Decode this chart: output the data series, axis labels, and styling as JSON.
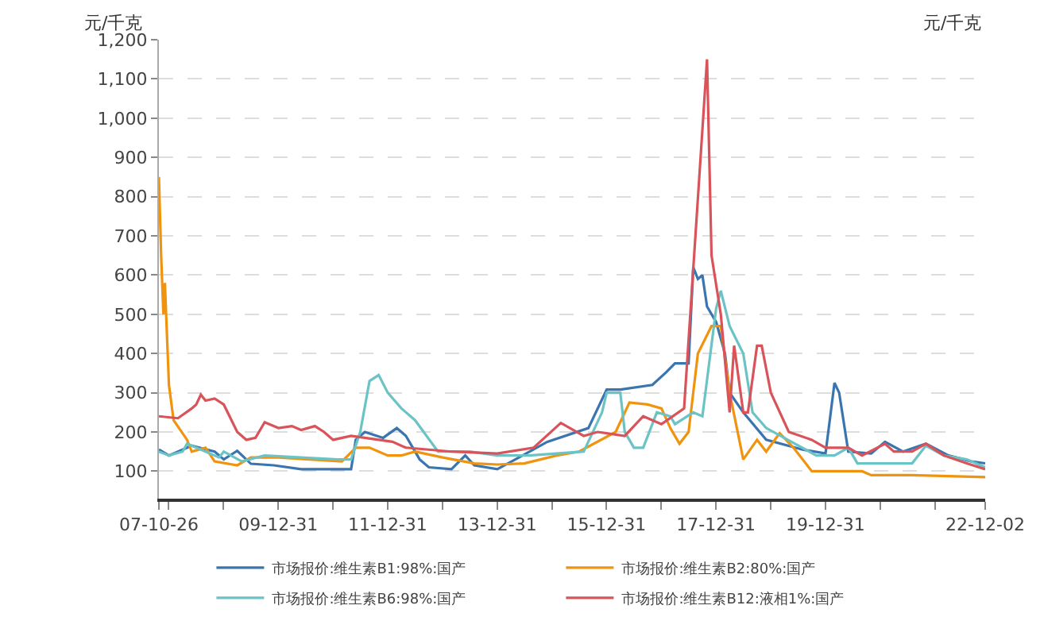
{
  "chart_data": {
    "type": "line",
    "ylabel": "元/千克",
    "y2label": "元/千克",
    "xlim": [
      "2007-10-26",
      "2022-12-02"
    ],
    "xticks": [
      {
        "value": "2007-10-26",
        "label": "07-10-26"
      },
      {
        "value": "2007-12-31",
        "label": null
      },
      {
        "value": "2008-12-31",
        "label": null
      },
      {
        "value": "2009-12-31",
        "label": "09-12-31"
      },
      {
        "value": "2010-12-31",
        "label": null
      },
      {
        "value": "2011-12-31",
        "label": "11-12-31"
      },
      {
        "value": "2012-12-31",
        "label": null
      },
      {
        "value": "2013-12-31",
        "label": "13-12-31"
      },
      {
        "value": "2014-12-31",
        "label": null
      },
      {
        "value": "2015-12-31",
        "label": "15-12-31"
      },
      {
        "value": "2016-12-31",
        "label": null
      },
      {
        "value": "2017-12-31",
        "label": "17-12-31"
      },
      {
        "value": "2018-12-31",
        "label": null
      },
      {
        "value": "2019-12-31",
        "label": "19-12-31"
      },
      {
        "value": "2020-12-31",
        "label": null
      },
      {
        "value": "2021-12-31",
        "label": null
      },
      {
        "value": "2022-12-02",
        "label": "22-12-02"
      }
    ],
    "ylim": [
      30,
      1200
    ],
    "yticks": [
      {
        "value": 100,
        "label": "100"
      },
      {
        "value": 200,
        "label": "200"
      },
      {
        "value": 300,
        "label": "300"
      },
      {
        "value": 400,
        "label": "400"
      },
      {
        "value": 500,
        "label": "500"
      },
      {
        "value": 600,
        "label": "600"
      },
      {
        "value": 700,
        "label": "700"
      },
      {
        "value": 800,
        "label": "800"
      },
      {
        "value": 900,
        "label": "900"
      },
      {
        "value": 1000,
        "label": "1,000"
      },
      {
        "value": 1100,
        "label": "1,100"
      },
      {
        "value": 1200,
        "label": "1,200"
      }
    ],
    "grid": "y",
    "legend": "bottom",
    "marker": "none",
    "line_style": "solid",
    "series": [
      {
        "name": "市场报价:维生素B1:98%:国产",
        "color": "#3b75af",
        "x": [
          "2007-10-26",
          "2008-01",
          "2008-06",
          "2008-11",
          "2009-01",
          "2009-04",
          "2009-07",
          "2009-12",
          "2010-06",
          "2011-05",
          "2011-06",
          "2011-08",
          "2011-12",
          "2012-03",
          "2012-05",
          "2012-08",
          "2012-10",
          "2013-03",
          "2013-06",
          "2013-08",
          "2014-01",
          "2014-05",
          "2014-12",
          "2015-09",
          "2016-01",
          "2016-04",
          "2016-11",
          "2017-02",
          "2017-04",
          "2017-07",
          "2017-08",
          "2017-09",
          "2017-10",
          "2017-11",
          "2018-01",
          "2018-03",
          "2018-04",
          "2018-07",
          "2018-12",
          "2019-08",
          "2020-01",
          "2020-03",
          "2020-04",
          "2020-06",
          "2020-11",
          "2021-02",
          "2021-06",
          "2021-11",
          "2022-04",
          "2022-09",
          "2022-12-02"
        ],
        "values": [
          155,
          140,
          165,
          150,
          130,
          152,
          119,
          115,
          105,
          105,
          180,
          200,
          185,
          210,
          190,
          130,
          110,
          105,
          140,
          115,
          105,
          130,
          175,
          210,
          308,
          308,
          320,
          352,
          375,
          375,
          620,
          590,
          600,
          520,
          480,
          400,
          300,
          250,
          180,
          155,
          145,
          325,
          300,
          150,
          145,
          175,
          150,
          170,
          140,
          125,
          120
        ]
      },
      {
        "name": "市场报价:维生素B2:80%:国产",
        "color": "#f0940f",
        "x": [
          "2007-10-26",
          "2007-11-10",
          "2007-11-25",
          "2007-12-05",
          "2008-01",
          "2008-02",
          "2008-05",
          "2008-06",
          "2008-09",
          "2008-11",
          "2009-04",
          "2009-07",
          "2010-01",
          "2010-08",
          "2011-03",
          "2011-06",
          "2011-09",
          "2012-01",
          "2012-04",
          "2012-07",
          "2013-01",
          "2013-08",
          "2014-01",
          "2014-07",
          "2015-02",
          "2015-07",
          "2016-03",
          "2016-06",
          "2016-10",
          "2017-01",
          "2017-03",
          "2017-05",
          "2017-07",
          "2017-09",
          "2017-12",
          "2018-02",
          "2018-04",
          "2018-07",
          "2018-10",
          "2018-12",
          "2019-03",
          "2019-06",
          "2019-08",
          "2019-10",
          "2020-09",
          "2020-11",
          "2021-08",
          "2022-12-02"
        ],
        "values": [
          850,
          650,
          500,
          580,
          320,
          230,
          180,
          150,
          160,
          125,
          115,
          135,
          135,
          130,
          125,
          160,
          160,
          140,
          140,
          150,
          135,
          120,
          117,
          120,
          140,
          150,
          200,
          275,
          270,
          260,
          210,
          170,
          200,
          400,
          470,
          470,
          300,
          130,
          180,
          150,
          197,
          160,
          130,
          100,
          100,
          90,
          90,
          85
        ]
      },
      {
        "name": "市场报价:维生素B6:98%:国产",
        "color": "#6cc3c6",
        "x": [
          "2007-10-26",
          "2008-01",
          "2008-04",
          "2008-05",
          "2008-08",
          "2008-12",
          "2009-01",
          "2009-05",
          "2009-10",
          "2010-06",
          "2011-02",
          "2011-05",
          "2011-07",
          "2011-09",
          "2011-11",
          "2012-01",
          "2012-04",
          "2012-07",
          "2012-12",
          "2013-07",
          "2014-01",
          "2014-08",
          "2015-08",
          "2015-12",
          "2016-01",
          "2016-04",
          "2016-05",
          "2016-07",
          "2016-09",
          "2016-12",
          "2017-03",
          "2017-04",
          "2017-08",
          "2017-10",
          "2018-01",
          "2018-02",
          "2018-04",
          "2018-07",
          "2018-09",
          "2018-12",
          "2019-11",
          "2020-03",
          "2020-06",
          "2020-08",
          "2021-08",
          "2021-11",
          "2022-03",
          "2022-08",
          "2022-12-02"
        ],
        "values": [
          150,
          140,
          150,
          170,
          155,
          135,
          150,
          125,
          140,
          135,
          130,
          130,
          200,
          330,
          345,
          300,
          260,
          230,
          150,
          150,
          140,
          140,
          150,
          250,
          300,
          300,
          200,
          160,
          160,
          250,
          240,
          220,
          250,
          240,
          515,
          560,
          470,
          400,
          250,
          210,
          140,
          140,
          160,
          120,
          120,
          165,
          140,
          130,
          110
        ]
      },
      {
        "name": "市场报价:维生素B12:液相1%:国产",
        "color": "#d9545a",
        "x": [
          "2007-10-26",
          "2008-03",
          "2008-06",
          "2008-07",
          "2008-08",
          "2008-09",
          "2008-11",
          "2009-01",
          "2009-04",
          "2009-06",
          "2009-08",
          "2009-10",
          "2010-01",
          "2010-04",
          "2010-06",
          "2010-09",
          "2010-11",
          "2011-01",
          "2011-05",
          "2011-08",
          "2011-11",
          "2012-02",
          "2012-05",
          "2013-03",
          "2014-01",
          "2014-09",
          "2015-03",
          "2015-08",
          "2015-11",
          "2016-05",
          "2016-09",
          "2017-01",
          "2017-06",
          "2017-11",
          "2017-12",
          "2018-02",
          "2018-04",
          "2018-05",
          "2018-07",
          "2018-08",
          "2018-10",
          "2018-11",
          "2019-01",
          "2019-05",
          "2019-10",
          "2020-01",
          "2020-06",
          "2020-09",
          "2021-02",
          "2021-04",
          "2021-08",
          "2021-11",
          "2022-03",
          "2022-08",
          "2022-12-02"
        ],
        "values": [
          240,
          235,
          260,
          270,
          295,
          280,
          285,
          270,
          200,
          180,
          185,
          225,
          210,
          215,
          205,
          215,
          200,
          180,
          190,
          185,
          180,
          175,
          160,
          150,
          145,
          160,
          223,
          190,
          200,
          190,
          240,
          220,
          260,
          1150,
          650,
          500,
          250,
          420,
          250,
          250,
          420,
          420,
          300,
          200,
          180,
          160,
          160,
          140,
          170,
          150,
          150,
          170,
          140,
          120,
          105
        ]
      }
    ]
  }
}
